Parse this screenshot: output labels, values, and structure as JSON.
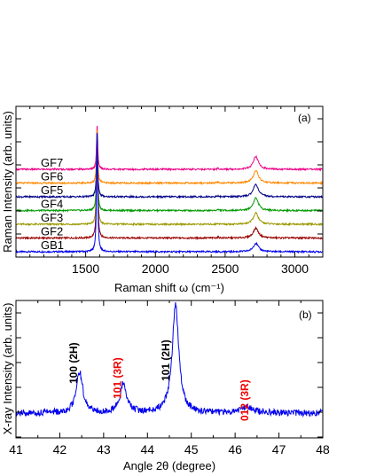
{
  "chart_data": [
    {
      "type": "line",
      "panel_label": "(a)",
      "title": "",
      "xlabel": "Raman shift ω (cm⁻¹)",
      "ylabel": "Raman Intensity (arb. units)",
      "xlim": [
        1000,
        3200
      ],
      "x_ticks": [
        1500,
        2000,
        2500,
        3000
      ],
      "y_ticks_labeled": false,
      "grid": false,
      "samples": [
        "GB1",
        "GF2",
        "GF3",
        "GF4",
        "GF5",
        "GF6",
        "GF7"
      ],
      "series": [
        {
          "name": "GB1",
          "color": "#0000ee",
          "baseline": 0,
          "g_peak": 8.6,
          "d2_peak": 0.62
        },
        {
          "name": "GF2",
          "color": "#990000",
          "baseline": 1,
          "g_peak": 7.6,
          "d2_peak": 0.72
        },
        {
          "name": "GF3",
          "color": "#999900",
          "baseline": 2,
          "g_peak": 6.6,
          "d2_peak": 0.82
        },
        {
          "name": "GF4",
          "color": "#009900",
          "baseline": 3,
          "g_peak": 5.6,
          "d2_peak": 0.92
        },
        {
          "name": "GF5",
          "color": "#000088",
          "baseline": 4,
          "g_peak": 4.6,
          "d2_peak": 0.92
        },
        {
          "name": "GF6",
          "color": "#ff8800",
          "baseline": 5,
          "g_peak": 3.9,
          "d2_peak": 0.92
        },
        {
          "name": "GF7",
          "color": "#ee0088",
          "baseline": 6,
          "g_peak": 3.2,
          "d2_peak": 0.92
        }
      ],
      "peaks_cm": {
        "G": 1582,
        "D2": 2720
      }
    },
    {
      "type": "line",
      "panel_label": "(b)",
      "title": "",
      "xlabel": "Angle 2θ (degree)",
      "ylabel": "X-ray Intensity (arb. units)",
      "xlim": [
        41,
        48
      ],
      "x_ticks": [
        41,
        42,
        43,
        44,
        45,
        46,
        47,
        48
      ],
      "y_ticks_labeled": false,
      "grid": false,
      "color": "#0000ee",
      "annotations": [
        {
          "text": "100 (2H)",
          "x": 42.4,
          "color": "#000000"
        },
        {
          "text": "101 (3R)",
          "x": 43.4,
          "color": "#ee0000"
        },
        {
          "text": "101 (2H)",
          "x": 44.5,
          "color": "#000000"
        },
        {
          "text": "012 (3R)",
          "x": 46.3,
          "color": "#ee0000"
        }
      ],
      "peaks": [
        {
          "x": 42.45,
          "height": 0.38
        },
        {
          "x": 43.45,
          "height": 0.27
        },
        {
          "x": 44.64,
          "height": 1.0
        },
        {
          "x": 46.25,
          "height": 0.06
        }
      ],
      "baseline": 0.08
    }
  ]
}
